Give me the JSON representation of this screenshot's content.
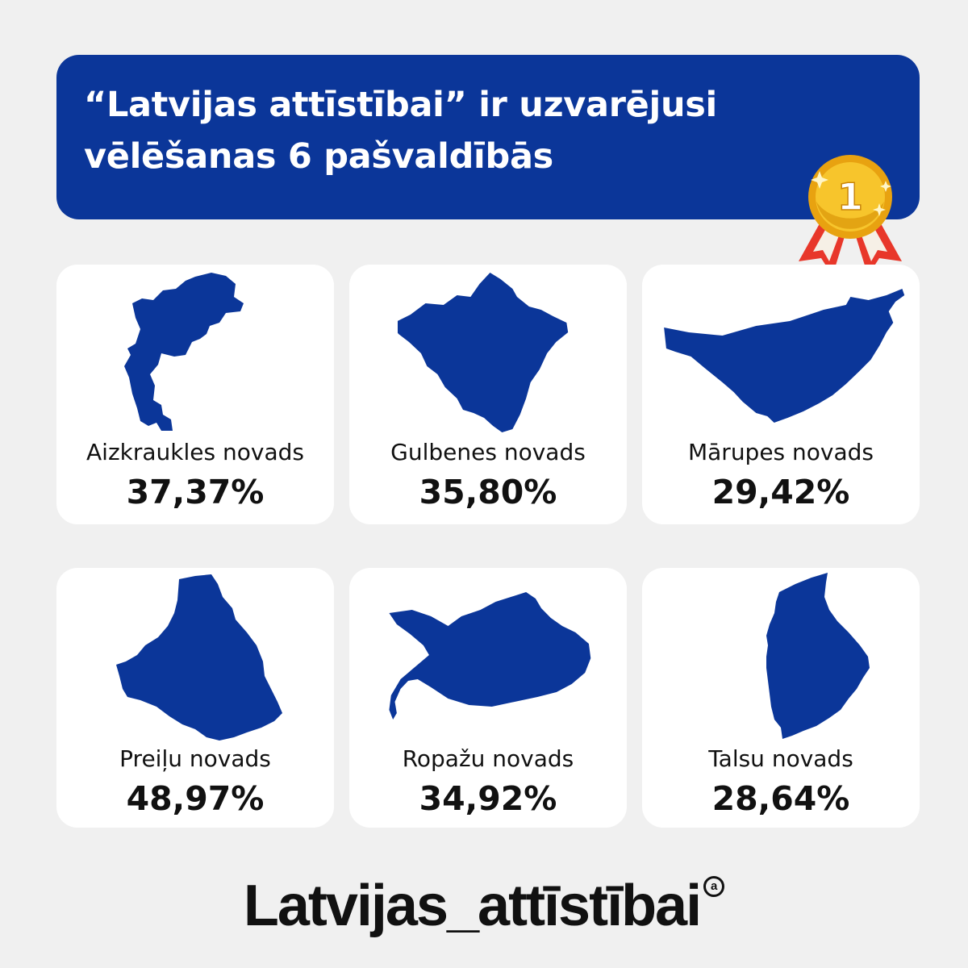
{
  "header": {
    "line1": "“Latvijas attīstībai” ir uzvarējusi",
    "line2": "vēlēšanas 6 pašvaldībās"
  },
  "medal": {
    "label": "1",
    "icon": "gold-medal-icon"
  },
  "colors": {
    "brand": "#0b3699",
    "background": "#f0f0f0",
    "card": "#ffffff",
    "ribbon": "#e8372a",
    "gold": "#f5b21d"
  },
  "municipalities": [
    {
      "name": "Aizkraukles novads",
      "percent": "37,37%",
      "icon": "aizkraukle-map-icon"
    },
    {
      "name": "Gulbenes novads",
      "percent": "35,80%",
      "icon": "gulbene-map-icon"
    },
    {
      "name": "Mārupes novads",
      "percent": "29,42%",
      "icon": "marupe-map-icon"
    },
    {
      "name": "Preiļu novads",
      "percent": "48,97%",
      "icon": "preili-map-icon"
    },
    {
      "name": "Ropažu novads",
      "percent": "34,92%",
      "icon": "ropazi-map-icon"
    },
    {
      "name": "Talsu novads",
      "percent": "28,64%",
      "icon": "talsi-map-icon"
    }
  ],
  "footer": {
    "logo_text": "Latvijas_attīstībai",
    "logo_mark": "a"
  }
}
